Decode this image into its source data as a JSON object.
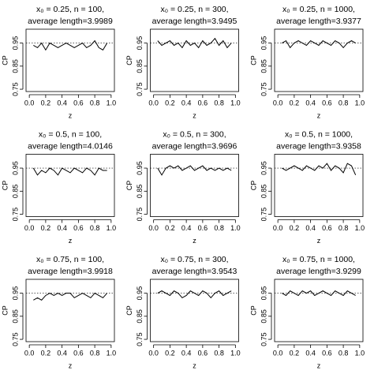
{
  "chart_data": [
    {
      "type": "line",
      "title": "x₀ = 0.25, n = 100,",
      "subtitle": "average length=3.9989",
      "xlabel": "z",
      "ylabel": "CP",
      "xlim": [
        -0.04,
        1.04
      ],
      "ylim": [
        0.74,
        1.01
      ],
      "xticks": [
        {
          "value": 0,
          "label": "0.0"
        },
        0.2,
        0.4,
        0.6,
        0.8,
        {
          "value": 1,
          "label": "1.0"
        }
      ],
      "yticks": [
        0.75,
        0.85,
        0.95
      ],
      "reference_line": 0.95,
      "color": "#000000",
      "x": [
        0.05,
        0.1,
        0.15,
        0.2,
        0.25,
        0.3,
        0.35,
        0.4,
        0.45,
        0.5,
        0.55,
        0.6,
        0.65,
        0.7,
        0.75,
        0.8,
        0.85,
        0.9,
        0.95
      ],
      "values": [
        0.94,
        0.93,
        0.95,
        0.92,
        0.95,
        0.94,
        0.93,
        0.94,
        0.95,
        0.94,
        0.93,
        0.94,
        0.95,
        0.93,
        0.94,
        0.96,
        0.93,
        0.92,
        0.95
      ]
    },
    {
      "type": "line",
      "title": "x₀ = 0.25, n = 300,",
      "subtitle": "average length=3.9495",
      "xlabel": "z",
      "ylabel": "CP",
      "xlim": [
        -0.04,
        1.04
      ],
      "ylim": [
        0.74,
        1.01
      ],
      "xticks": [
        {
          "value": 0,
          "label": "0.0"
        },
        0.2,
        0.4,
        0.6,
        0.8,
        {
          "value": 1,
          "label": "1.0"
        }
      ],
      "yticks": [
        0.75,
        0.85,
        0.95
      ],
      "reference_line": 0.95,
      "color": "#000000",
      "x": [
        0.05,
        0.1,
        0.15,
        0.2,
        0.25,
        0.3,
        0.35,
        0.4,
        0.45,
        0.5,
        0.55,
        0.6,
        0.65,
        0.7,
        0.75,
        0.8,
        0.85,
        0.9,
        0.95
      ],
      "values": [
        0.96,
        0.94,
        0.95,
        0.96,
        0.94,
        0.95,
        0.93,
        0.96,
        0.94,
        0.95,
        0.93,
        0.96,
        0.94,
        0.95,
        0.97,
        0.94,
        0.96,
        0.93,
        0.95
      ]
    },
    {
      "type": "line",
      "title": "x₀ = 0.25, n = 1000,",
      "subtitle": "average length=3.9377",
      "xlabel": "z",
      "ylabel": "CP",
      "xlim": [
        -0.04,
        1.04
      ],
      "ylim": [
        0.74,
        1.01
      ],
      "xticks": [
        {
          "value": 0,
          "label": "0.0"
        },
        0.2,
        0.4,
        0.6,
        0.8,
        {
          "value": 1,
          "label": "1.0"
        }
      ],
      "yticks": [
        0.75,
        0.85,
        0.95
      ],
      "reference_line": 0.95,
      "color": "#000000",
      "x": [
        0.05,
        0.1,
        0.15,
        0.2,
        0.25,
        0.3,
        0.35,
        0.4,
        0.45,
        0.5,
        0.55,
        0.6,
        0.65,
        0.7,
        0.75,
        0.8,
        0.85,
        0.9,
        0.95
      ],
      "values": [
        0.95,
        0.96,
        0.93,
        0.95,
        0.96,
        0.95,
        0.94,
        0.96,
        0.95,
        0.94,
        0.96,
        0.95,
        0.94,
        0.96,
        0.95,
        0.93,
        0.95,
        0.96,
        0.95
      ]
    },
    {
      "type": "line",
      "title": "x₀ = 0.5, n = 100,",
      "subtitle": "average length=4.0146",
      "xlabel": "z",
      "ylabel": "CP",
      "xlim": [
        -0.04,
        1.04
      ],
      "ylim": [
        0.74,
        1.01
      ],
      "xticks": [
        {
          "value": 0,
          "label": "0.0"
        },
        0.2,
        0.4,
        0.6,
        0.8,
        {
          "value": 1,
          "label": "1.0"
        }
      ],
      "yticks": [
        0.75,
        0.85,
        0.95
      ],
      "reference_line": 0.95,
      "color": "#000000",
      "x": [
        0.05,
        0.1,
        0.15,
        0.2,
        0.25,
        0.3,
        0.35,
        0.4,
        0.45,
        0.5,
        0.55,
        0.6,
        0.65,
        0.7,
        0.75,
        0.8,
        0.85,
        0.9,
        0.95
      ],
      "values": [
        0.95,
        0.92,
        0.94,
        0.93,
        0.95,
        0.94,
        0.92,
        0.95,
        0.94,
        0.93,
        0.95,
        0.94,
        0.93,
        0.95,
        0.94,
        0.92,
        0.95,
        0.94,
        0.94
      ]
    },
    {
      "type": "line",
      "title": "x₀ = 0.5, n = 300,",
      "subtitle": "average length=3.9696",
      "xlabel": "z",
      "ylabel": "CP",
      "xlim": [
        -0.04,
        1.04
      ],
      "ylim": [
        0.74,
        1.01
      ],
      "xticks": [
        {
          "value": 0,
          "label": "0.0"
        },
        0.2,
        0.4,
        0.6,
        0.8,
        {
          "value": 1,
          "label": "1.0"
        }
      ],
      "yticks": [
        0.75,
        0.85,
        0.95
      ],
      "reference_line": 0.95,
      "color": "#000000",
      "x": [
        0.05,
        0.1,
        0.15,
        0.2,
        0.25,
        0.3,
        0.35,
        0.4,
        0.45,
        0.5,
        0.55,
        0.6,
        0.65,
        0.7,
        0.75,
        0.8,
        0.85,
        0.9,
        0.95
      ],
      "values": [
        0.95,
        0.92,
        0.95,
        0.96,
        0.95,
        0.96,
        0.94,
        0.95,
        0.96,
        0.94,
        0.95,
        0.96,
        0.94,
        0.95,
        0.94,
        0.95,
        0.94,
        0.95,
        0.94
      ]
    },
    {
      "type": "line",
      "title": "x₀ = 0.5, n = 1000,",
      "subtitle": "average length=3.9358",
      "xlabel": "z",
      "ylabel": "CP",
      "xlim": [
        -0.04,
        1.04
      ],
      "ylim": [
        0.74,
        1.01
      ],
      "xticks": [
        {
          "value": 0,
          "label": "0.0"
        },
        0.2,
        0.4,
        0.6,
        0.8,
        {
          "value": 1,
          "label": "1.0"
        }
      ],
      "yticks": [
        0.75,
        0.85,
        0.95
      ],
      "reference_line": 0.95,
      "color": "#000000",
      "x": [
        0.05,
        0.1,
        0.15,
        0.2,
        0.25,
        0.3,
        0.35,
        0.4,
        0.45,
        0.5,
        0.55,
        0.6,
        0.65,
        0.7,
        0.75,
        0.8,
        0.85,
        0.9,
        0.95
      ],
      "values": [
        0.95,
        0.94,
        0.95,
        0.96,
        0.95,
        0.94,
        0.96,
        0.95,
        0.94,
        0.96,
        0.95,
        0.97,
        0.94,
        0.96,
        0.95,
        0.93,
        0.97,
        0.96,
        0.92
      ]
    },
    {
      "type": "line",
      "title": "x₀ = 0.75, n = 100,",
      "subtitle": "average length=3.9918",
      "xlabel": "z",
      "ylabel": "CP",
      "xlim": [
        -0.04,
        1.04
      ],
      "ylim": [
        0.74,
        1.01
      ],
      "xticks": [
        {
          "value": 0,
          "label": "0.0"
        },
        0.2,
        0.4,
        0.6,
        0.8,
        {
          "value": 1,
          "label": "1.0"
        }
      ],
      "yticks": [
        0.75,
        0.85,
        0.95
      ],
      "reference_line": 0.95,
      "color": "#000000",
      "x": [
        0.05,
        0.1,
        0.15,
        0.2,
        0.25,
        0.3,
        0.35,
        0.4,
        0.45,
        0.5,
        0.55,
        0.6,
        0.65,
        0.7,
        0.75,
        0.8,
        0.85,
        0.9,
        0.95
      ],
      "values": [
        0.92,
        0.93,
        0.92,
        0.94,
        0.95,
        0.94,
        0.95,
        0.94,
        0.95,
        0.95,
        0.93,
        0.94,
        0.95,
        0.94,
        0.93,
        0.95,
        0.94,
        0.93,
        0.95
      ]
    },
    {
      "type": "line",
      "title": "x₀ = 0.75, n = 300,",
      "subtitle": "average length=3.9543",
      "xlabel": "z",
      "ylabel": "CP",
      "xlim": [
        -0.04,
        1.04
      ],
      "ylim": [
        0.74,
        1.01
      ],
      "xticks": [
        {
          "value": 0,
          "label": "0.0"
        },
        0.2,
        0.4,
        0.6,
        0.8,
        {
          "value": 1,
          "label": "1.0"
        }
      ],
      "yticks": [
        0.75,
        0.85,
        0.95
      ],
      "reference_line": 0.95,
      "color": "#000000",
      "x": [
        0.05,
        0.1,
        0.15,
        0.2,
        0.25,
        0.3,
        0.35,
        0.4,
        0.45,
        0.5,
        0.55,
        0.6,
        0.65,
        0.7,
        0.75,
        0.8,
        0.85,
        0.9,
        0.95
      ],
      "values": [
        0.95,
        0.96,
        0.95,
        0.94,
        0.96,
        0.95,
        0.93,
        0.94,
        0.96,
        0.95,
        0.94,
        0.96,
        0.95,
        0.93,
        0.95,
        0.96,
        0.94,
        0.95,
        0.96
      ]
    },
    {
      "type": "line",
      "title": "x₀ = 0.75, n = 1000,",
      "subtitle": "average length=3.9299",
      "xlabel": "z",
      "ylabel": "CP",
      "xlim": [
        -0.04,
        1.04
      ],
      "ylim": [
        0.74,
        1.01
      ],
      "xticks": [
        {
          "value": 0,
          "label": "0.0"
        },
        0.2,
        0.4,
        0.6,
        0.8,
        {
          "value": 1,
          "label": "1.0"
        }
      ],
      "yticks": [
        0.75,
        0.85,
        0.95
      ],
      "reference_line": 0.95,
      "color": "#000000",
      "x": [
        0.05,
        0.1,
        0.15,
        0.2,
        0.25,
        0.3,
        0.35,
        0.4,
        0.45,
        0.5,
        0.55,
        0.6,
        0.65,
        0.7,
        0.75,
        0.8,
        0.85,
        0.9,
        0.95
      ],
      "values": [
        0.95,
        0.94,
        0.96,
        0.95,
        0.94,
        0.96,
        0.95,
        0.96,
        0.94,
        0.95,
        0.96,
        0.95,
        0.94,
        0.96,
        0.95,
        0.94,
        0.96,
        0.95,
        0.94
      ]
    }
  ]
}
